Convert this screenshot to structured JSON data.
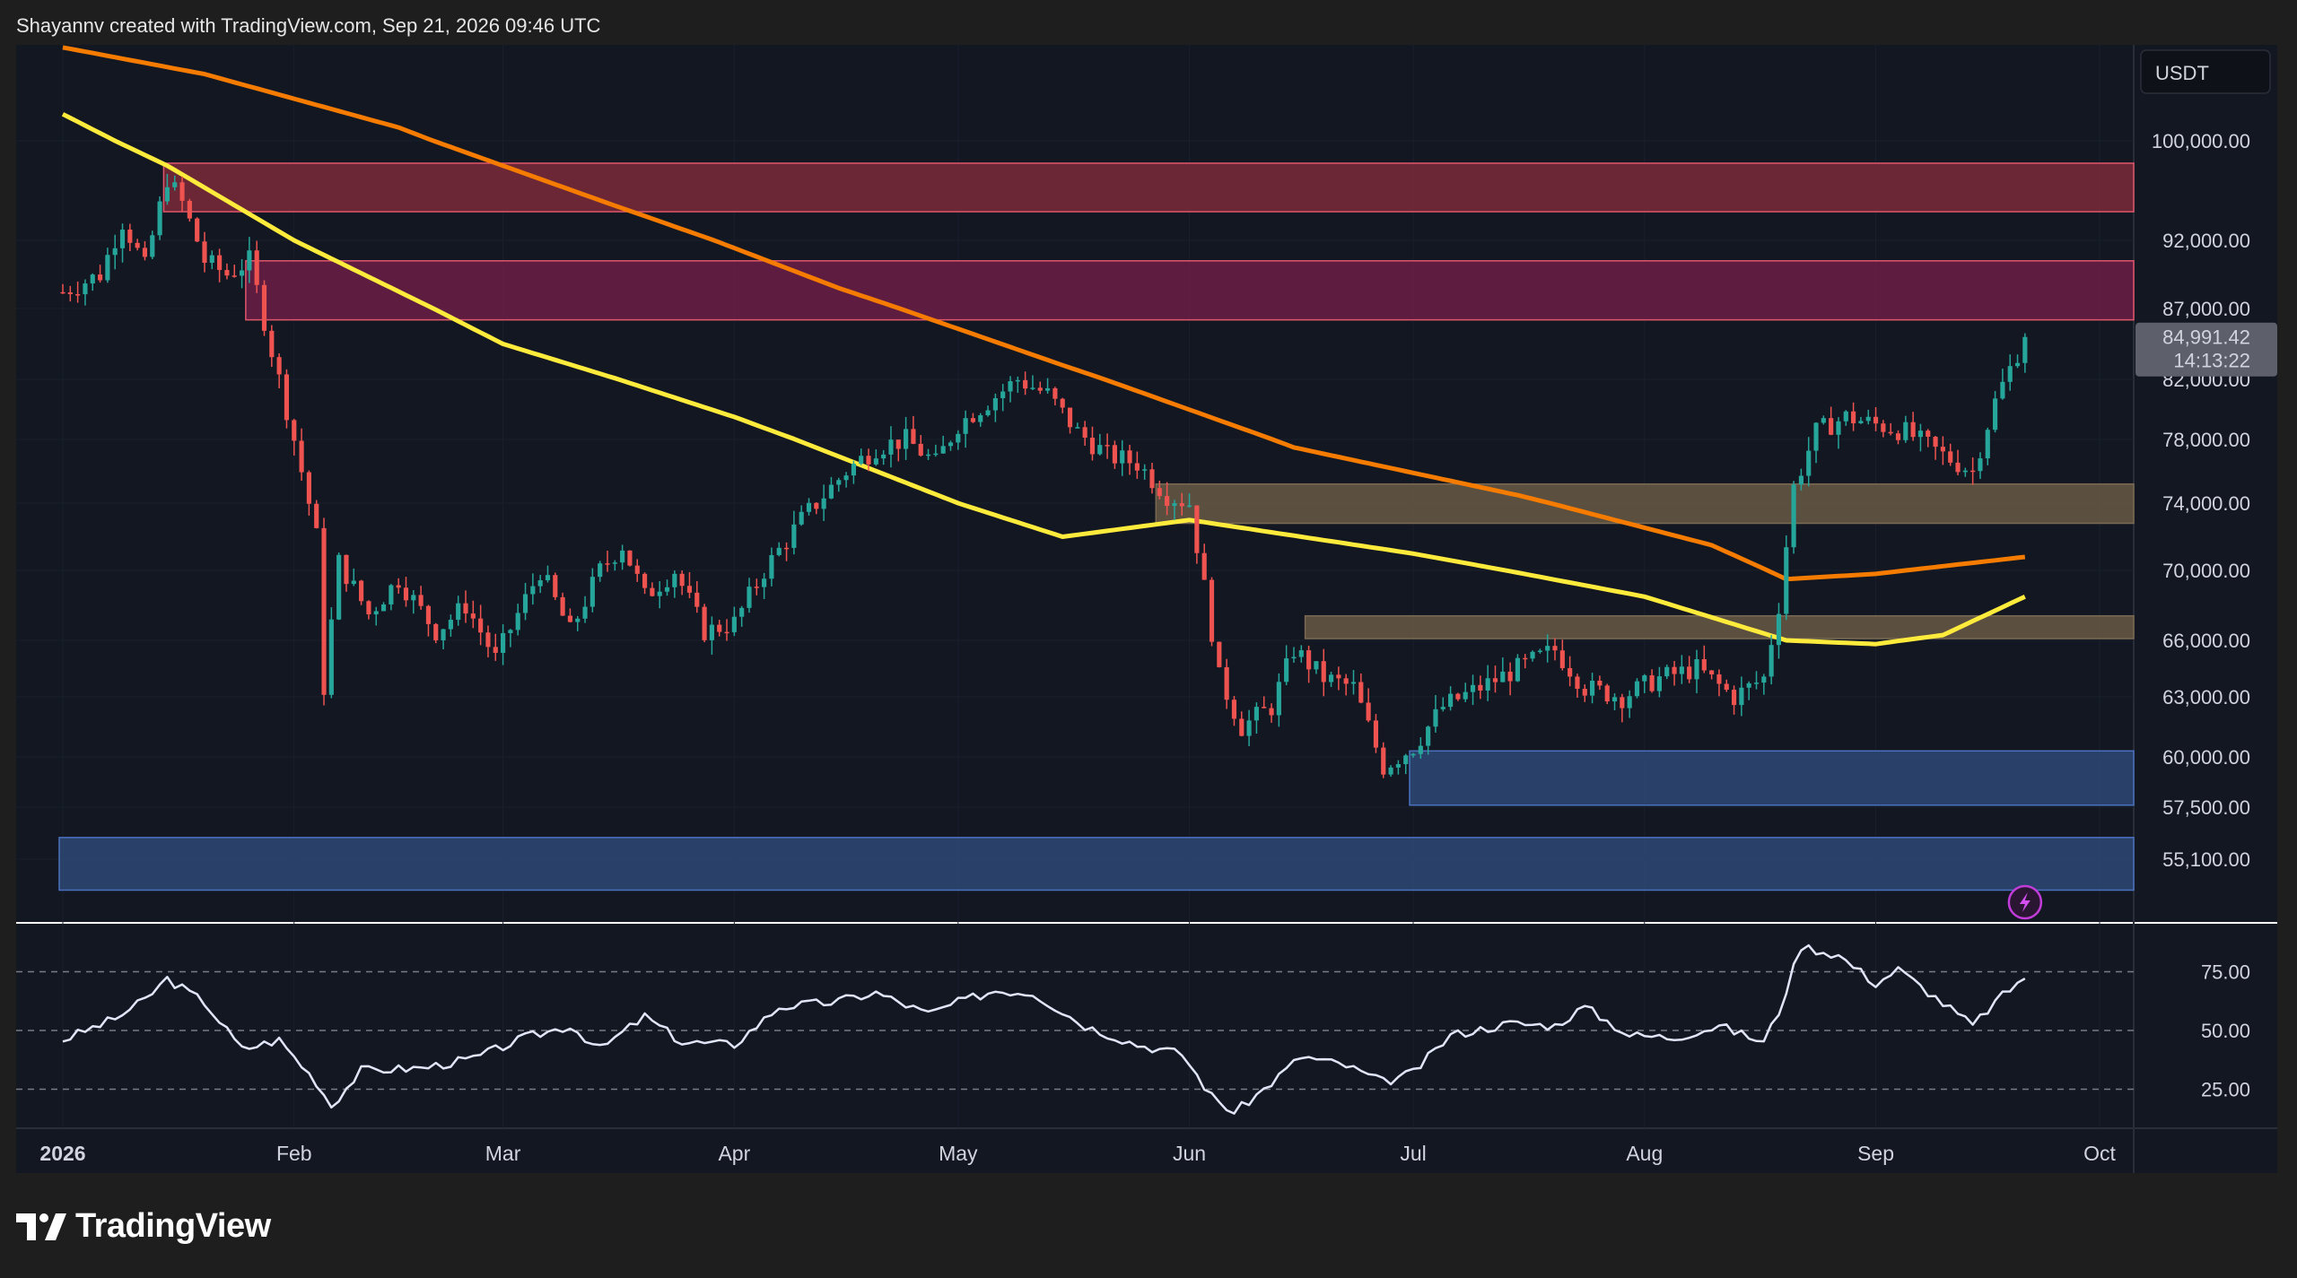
{
  "header": {
    "text": "Shayannv created with TradingView.com, Sep 21, 2026 09:46 UTC"
  },
  "brand": {
    "name": "TradingView",
    "logo_icon": "tradingview-logo-icon"
  },
  "currency_label": "USDT",
  "price_tag": {
    "price": "84,991.42",
    "countdown": "14:13:22",
    "color": "#5d606b"
  },
  "colors": {
    "background": "#131722",
    "outer": "#1e1e1e",
    "up_candle": "#26a69a",
    "down_candle": "#ef5350",
    "ma_200": "#f57c00",
    "ma_100": "#ffeb3b",
    "rsi_line": "#e0e6f8",
    "supply_zone": "#7f2b3b",
    "resistance_zone": "#6f1f47",
    "mid_zone": "#6b5c47",
    "demand_zone": "#2e4a78"
  },
  "chart_data": {
    "type": "candlestick",
    "symbol_quote": "USDT",
    "y_tick_labels": [
      "100,000.00",
      "92,000.00",
      "87,000.00",
      "82,000.00",
      "78,000.00",
      "74,000.00",
      "70,000.00",
      "66,000.00",
      "63,000.00",
      "60,000.00",
      "57,500.00",
      "55,100.00"
    ],
    "y_ticks": [
      100000,
      92000,
      87000,
      82000,
      78000,
      74000,
      70000,
      66000,
      63000,
      60000,
      57500,
      55100
    ],
    "x_tick_labels": [
      "2026",
      "Feb",
      "Mar",
      "Apr",
      "May",
      "Jun",
      "Jul",
      "Aug",
      "Sep",
      "Oct"
    ],
    "x_ticks": [
      "2026-01-01",
      "2026-02-01",
      "2026-03-01",
      "2026-04-01",
      "2026-05-01",
      "2026-06-01",
      "2026-07-01",
      "2026-08-01",
      "2026-09-01",
      "2026-10-01"
    ],
    "last_price": 84991.42,
    "close_path": [
      [
        "2026-01-01",
        88200
      ],
      [
        "2026-01-06",
        89500
      ],
      [
        "2026-01-09",
        93500
      ],
      [
        "2026-01-12",
        90000
      ],
      [
        "2026-01-15",
        97000
      ],
      [
        "2026-01-17",
        95000
      ],
      [
        "2026-01-20",
        90500
      ],
      [
        "2026-01-23",
        89500
      ],
      [
        "2026-01-26",
        90500
      ],
      [
        "2026-01-29",
        84000
      ],
      [
        "2026-02-01",
        78000
      ],
      [
        "2026-02-04",
        72000
      ],
      [
        "2026-02-05",
        63500
      ],
      [
        "2026-02-07",
        70500
      ],
      [
        "2026-02-11",
        67500
      ],
      [
        "2026-02-15",
        69500
      ],
      [
        "2026-02-20",
        66500
      ],
      [
        "2026-02-24",
        68000
      ],
      [
        "2026-02-28",
        65000
      ],
      [
        "2026-03-03",
        67500
      ],
      [
        "2026-03-06",
        70000
      ],
      [
        "2026-03-10",
        66500
      ],
      [
        "2026-03-14",
        70000
      ],
      [
        "2026-03-17",
        71500
      ],
      [
        "2026-03-20",
        68500
      ],
      [
        "2026-03-24",
        70000
      ],
      [
        "2026-03-28",
        66500
      ],
      [
        "2026-04-01",
        67000
      ],
      [
        "2026-04-05",
        70000
      ],
      [
        "2026-04-10",
        73000
      ],
      [
        "2026-04-16",
        76000
      ],
      [
        "2026-04-20",
        77500
      ],
      [
        "2026-04-24",
        78000
      ],
      [
        "2026-04-28",
        76500
      ],
      [
        "2026-05-01",
        79000
      ],
      [
        "2026-05-05",
        80500
      ],
      [
        "2026-05-09",
        82000
      ],
      [
        "2026-05-13",
        81000
      ],
      [
        "2026-05-17",
        78500
      ],
      [
        "2026-05-21",
        77000
      ],
      [
        "2026-05-25",
        76500
      ],
      [
        "2026-05-29",
        74500
      ],
      [
        "2026-06-01",
        74000
      ],
      [
        "2026-06-03",
        69000
      ],
      [
        "2026-06-05",
        64000
      ],
      [
        "2026-06-08",
        61500
      ],
      [
        "2026-06-12",
        62500
      ],
      [
        "2026-06-15",
        65500
      ],
      [
        "2026-06-19",
        64000
      ],
      [
        "2026-06-23",
        63500
      ],
      [
        "2026-06-27",
        59500
      ],
      [
        "2026-07-01",
        60500
      ],
      [
        "2026-07-05",
        62500
      ],
      [
        "2026-07-10",
        63500
      ],
      [
        "2026-07-15",
        64500
      ],
      [
        "2026-07-20",
        65500
      ],
      [
        "2026-07-24",
        63500
      ],
      [
        "2026-07-29",
        63000
      ],
      [
        "2026-08-03",
        64000
      ],
      [
        "2026-08-08",
        64500
      ],
      [
        "2026-08-13",
        63000
      ],
      [
        "2026-08-17",
        64000
      ],
      [
        "2026-08-19",
        68000
      ],
      [
        "2026-08-21",
        75000
      ],
      [
        "2026-08-24",
        78500
      ],
      [
        "2026-08-28",
        79500
      ],
      [
        "2026-09-01",
        79000
      ],
      [
        "2026-09-05",
        78500
      ],
      [
        "2026-09-10",
        77000
      ],
      [
        "2026-09-14",
        76000
      ],
      [
        "2026-09-17",
        80500
      ],
      [
        "2026-09-21",
        84991
      ]
    ],
    "ma_100_path": [
      [
        "2026-01-01",
        102000
      ],
      [
        "2026-01-15",
        98000
      ],
      [
        "2026-02-01",
        92000
      ],
      [
        "2026-03-01",
        84500
      ],
      [
        "2026-04-01",
        79500
      ],
      [
        "2026-05-01",
        74000
      ],
      [
        "2026-05-15",
        72000
      ],
      [
        "2026-06-01",
        73000
      ],
      [
        "2026-07-01",
        71000
      ],
      [
        "2026-08-01",
        68500
      ],
      [
        "2026-08-20",
        66000
      ],
      [
        "2026-09-01",
        65800
      ],
      [
        "2026-09-10",
        66300
      ],
      [
        "2026-09-21",
        68500
      ]
    ],
    "ma_200_path": [
      [
        "2026-01-01",
        107000
      ],
      [
        "2026-01-20",
        105000
      ],
      [
        "2026-02-15",
        101000
      ],
      [
        "2026-03-15",
        95000
      ],
      [
        "2026-04-15",
        88500
      ],
      [
        "2026-05-15",
        83000
      ],
      [
        "2026-06-15",
        77500
      ],
      [
        "2026-07-15",
        74500
      ],
      [
        "2026-08-10",
        71500
      ],
      [
        "2026-08-20",
        69500
      ],
      [
        "2026-09-01",
        69800
      ],
      [
        "2026-09-21",
        70800
      ]
    ],
    "zones": [
      {
        "name": "supply-zone-upper",
        "from": "2026-01-15",
        "top": 98200,
        "bottom": 94300,
        "color": "#7f2b3b"
      },
      {
        "name": "resistance-zone",
        "from": "2026-01-26",
        "top": 90500,
        "bottom": 86200,
        "color": "#6f1f47"
      },
      {
        "name": "flip-zone",
        "from": "2026-05-28",
        "top": 75200,
        "bottom": 72800,
        "color": "#6b5c47"
      },
      {
        "name": "mid-support-zone",
        "from": "2026-06-17",
        "top": 67400,
        "bottom": 66100,
        "color": "#6b5c47"
      },
      {
        "name": "demand-zone",
        "from": "2026-07-01",
        "top": 60300,
        "bottom": 57600,
        "color": "#2e4a78"
      },
      {
        "name": "major-demand-zone",
        "from": "2026-01-01",
        "top": 56100,
        "bottom": 53500,
        "color": "#2e4a78"
      }
    ],
    "rsi": {
      "tick_labels": [
        "75.00",
        "50.00",
        "25.00"
      ],
      "levels": [
        75,
        50,
        25
      ],
      "range": [
        10,
        100
      ],
      "path": [
        [
          "2026-01-01",
          46
        ],
        [
          "2026-01-08",
          55
        ],
        [
          "2026-01-12",
          63
        ],
        [
          "2026-01-15",
          72
        ],
        [
          "2026-01-20",
          62
        ],
        [
          "2026-01-25",
          42
        ],
        [
          "2026-01-30",
          46
        ],
        [
          "2026-02-04",
          28
        ],
        [
          "2026-02-06",
          18
        ],
        [
          "2026-02-10",
          33
        ],
        [
          "2026-02-18",
          34
        ],
        [
          "2026-02-25",
          38
        ],
        [
          "2026-03-04",
          47
        ],
        [
          "2026-03-10",
          52
        ],
        [
          "2026-03-14",
          42
        ],
        [
          "2026-03-20",
          56
        ],
        [
          "2026-03-25",
          45
        ],
        [
          "2026-04-01",
          44
        ],
        [
          "2026-04-07",
          60
        ],
        [
          "2026-04-14",
          62
        ],
        [
          "2026-04-20",
          66
        ],
        [
          "2026-04-27",
          57
        ],
        [
          "2026-05-01",
          62
        ],
        [
          "2026-05-06",
          67
        ],
        [
          "2026-05-11",
          66
        ],
        [
          "2026-05-18",
          52
        ],
        [
          "2026-05-25",
          44
        ],
        [
          "2026-05-31",
          40
        ],
        [
          "2026-06-04",
          22
        ],
        [
          "2026-06-07",
          15
        ],
        [
          "2026-06-11",
          25
        ],
        [
          "2026-06-16",
          39
        ],
        [
          "2026-06-22",
          35
        ],
        [
          "2026-06-27",
          28
        ],
        [
          "2026-07-01",
          32
        ],
        [
          "2026-07-06",
          48
        ],
        [
          "2026-07-14",
          53
        ],
        [
          "2026-07-20",
          52
        ],
        [
          "2026-07-24",
          60
        ],
        [
          "2026-07-30",
          48
        ],
        [
          "2026-08-05",
          47
        ],
        [
          "2026-08-11",
          52
        ],
        [
          "2026-08-17",
          45
        ],
        [
          "2026-08-19",
          58
        ],
        [
          "2026-08-22",
          86
        ],
        [
          "2026-08-27",
          82
        ],
        [
          "2026-09-01",
          70
        ],
        [
          "2026-09-04",
          76
        ],
        [
          "2026-09-09",
          64
        ],
        [
          "2026-09-14",
          52
        ],
        [
          "2026-09-17",
          62
        ],
        [
          "2026-09-21",
          73
        ]
      ]
    },
    "events": [
      {
        "name": "lightning-event-icon",
        "date": "2026-09-21"
      }
    ]
  }
}
